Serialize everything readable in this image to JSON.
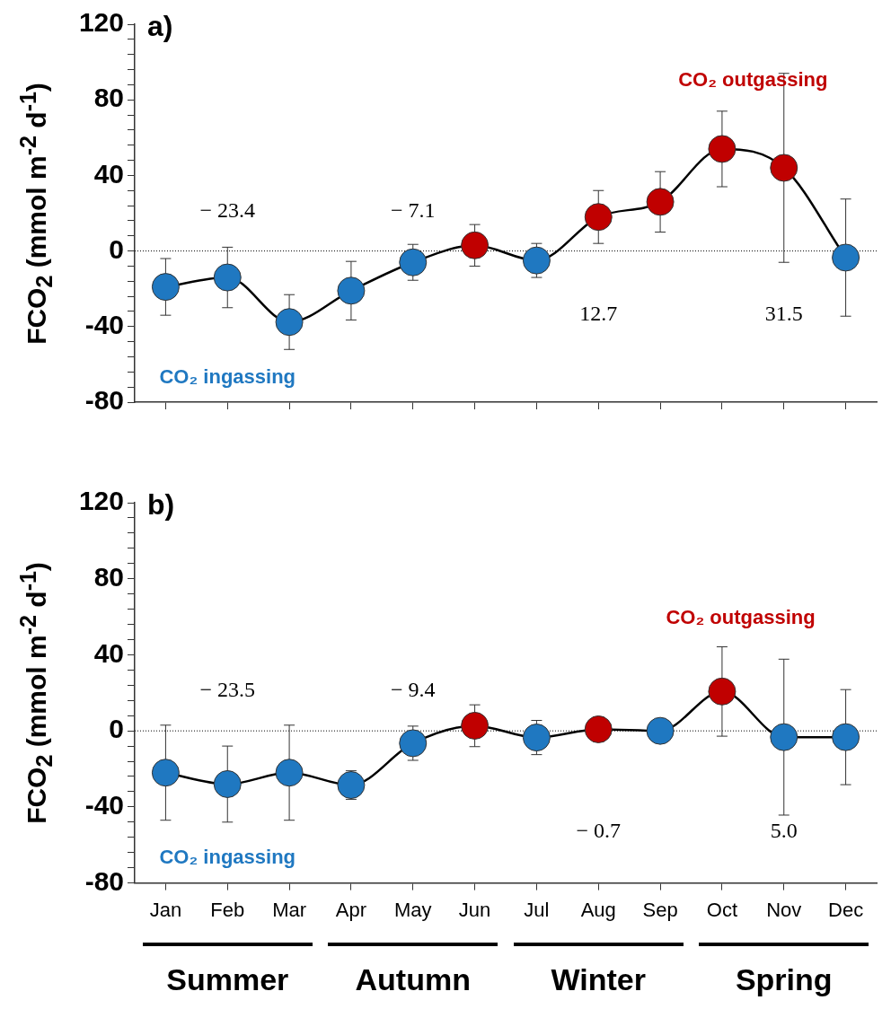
{
  "chart_data": [
    {
      "type": "line",
      "ylabel": "FCO$_{2}$ (mmol m$^{-2}$ d$^{-1}$)",
      "categories": [
        null,
        null,
        null,
        null,
        null,
        null,
        null,
        null,
        null,
        null,
        null,
        null
      ],
      "series": [
        {
          "color": "#000000",
          "colors": [
            "#1f78c1",
            "#1f78c1",
            "#1f78c1",
            "#1f78c1",
            "#1f78c1",
            "#c00000",
            "#1f78c1",
            "#c00000",
            "#c00000",
            "#c00000",
            "#c00000",
            "#1f78c1"
          ],
          "values": [
            -19,
            -14,
            -37.6,
            -21,
            -6,
            3,
            -5,
            18,
            26,
            54,
            44,
            -3.5
          ],
          "errors": [
            15,
            16,
            14.5,
            15.5,
            9.5,
            11,
            9,
            14,
            16,
            20,
            50,
            31
          ]
        }
      ],
      "ylim": [
        -80,
        120
      ],
      "yticks": [
        -80,
        {
          "value": -72,
          "label": null
        },
        {
          "value": -64,
          "label": null
        },
        {
          "value": -56,
          "label": null
        },
        {
          "value": -48,
          "label": null
        },
        -40,
        {
          "value": -32,
          "label": null
        },
        {
          "value": -24,
          "label": null
        },
        {
          "value": -16,
          "label": null
        },
        {
          "value": -8,
          "label": null
        },
        0,
        {
          "value": 8,
          "label": null
        },
        {
          "value": 16,
          "label": null
        },
        {
          "value": 24,
          "label": null
        },
        {
          "value": 32,
          "label": null
        },
        40,
        {
          "value": 48,
          "label": null
        },
        {
          "value": 56,
          "label": null
        },
        {
          "value": 64,
          "label": null
        },
        {
          "value": 72,
          "label": null
        },
        80,
        {
          "value": 88,
          "label": null
        },
        {
          "value": 96,
          "label": null
        },
        {
          "value": 104,
          "label": null
        },
        {
          "value": 112,
          "label": null
        },
        120
      ],
      "grid": false,
      "marker": "circle",
      "line_style": "solid",
      "tick_labels": "y",
      "ref_lines": [
        {
          "axis": "y",
          "value": 0,
          "line_style": "dotted"
        }
      ],
      "annotations": [
        "a)",
        "− 23.4",
        "− 7.1",
        "12.7",
        "31.5",
        "CO₂ ingassing",
        "CO₂ outgassing"
      ]
    },
    {
      "type": "line",
      "ylabel": "FCO$_{2}$ (mmol m$^{-2}$ d$^{-1}$)",
      "categories": [
        "Jan",
        "Feb",
        "Mar",
        "Apr",
        "May",
        "Jun",
        "Jul",
        "Aug",
        "Sep",
        "Oct",
        "Nov",
        "Dec"
      ],
      "series": [
        {
          "color": "#000000",
          "colors": [
            "#1f78c1",
            "#1f78c1",
            "#1f78c1",
            "#1f78c1",
            "#1f78c1",
            "#c00000",
            "#1f78c1",
            "#c00000",
            "#1f78c1",
            "#c00000",
            "#1f78c1",
            "#1f78c1"
          ],
          "values": [
            -22,
            -28,
            -22,
            -28.5,
            -6.5,
            2.7,
            -3.5,
            0.8,
            0,
            20.7,
            -3.3,
            -3.3
          ],
          "errors": [
            25,
            20,
            25,
            7.5,
            9,
            11,
            9,
            6.5,
            null,
            23.5,
            41,
            25
          ]
        }
      ],
      "ylim": [
        -80,
        120
      ],
      "yticks": [
        -80,
        {
          "value": -72,
          "label": null
        },
        {
          "value": -64,
          "label": null
        },
        {
          "value": -56,
          "label": null
        },
        {
          "value": -48,
          "label": null
        },
        -40,
        {
          "value": -32,
          "label": null
        },
        {
          "value": -24,
          "label": null
        },
        {
          "value": -16,
          "label": null
        },
        {
          "value": -8,
          "label": null
        },
        0,
        {
          "value": 8,
          "label": null
        },
        {
          "value": 16,
          "label": null
        },
        {
          "value": 24,
          "label": null
        },
        {
          "value": 32,
          "label": null
        },
        40,
        {
          "value": 48,
          "label": null
        },
        {
          "value": 56,
          "label": null
        },
        {
          "value": 64,
          "label": null
        },
        {
          "value": 72,
          "label": null
        },
        80,
        {
          "value": 88,
          "label": null
        },
        {
          "value": 96,
          "label": null
        },
        {
          "value": 104,
          "label": null
        },
        {
          "value": 112,
          "label": null
        },
        120
      ],
      "grid": false,
      "marker": "circle",
      "line_style": "solid",
      "ref_lines": [
        {
          "axis": "y",
          "value": 0,
          "line_style": "dotted"
        }
      ],
      "annotations": [
        "b)",
        "− 23.5",
        "− 9.4",
        "− 0.7",
        "5.0",
        "CO₂ ingassing",
        "CO₂ outgassing",
        "Summer",
        "Autumn",
        "Winter",
        "Spring"
      ]
    }
  ]
}
